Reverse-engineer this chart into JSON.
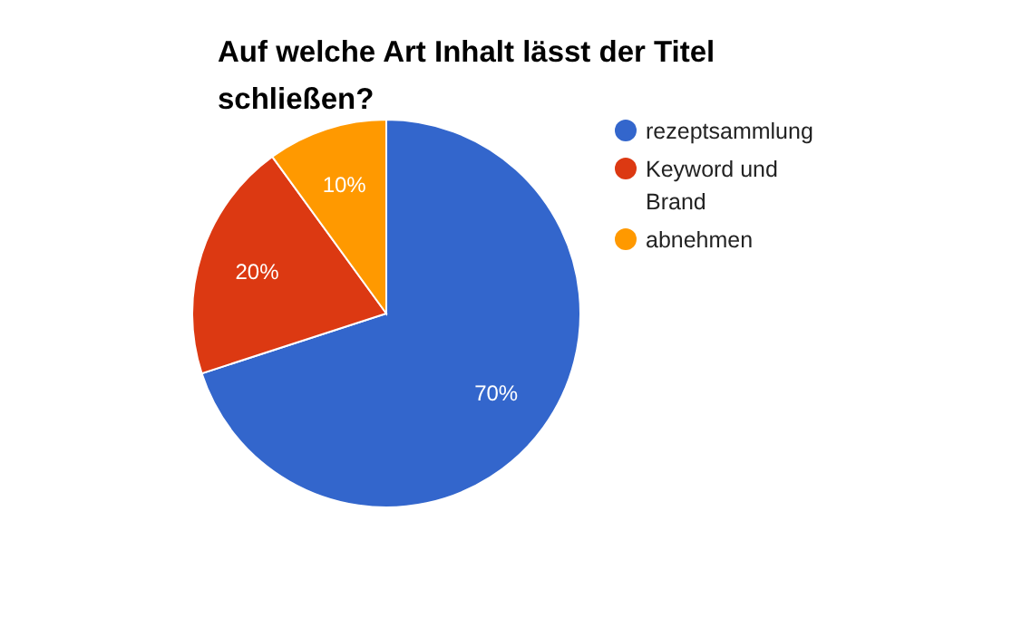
{
  "chart_data": {
    "type": "pie",
    "title": "Auf welche Art Inhalt lässt der Titel schließen?",
    "categories": [
      "rezeptsammlung",
      "Keyword und Brand",
      "abnehmen"
    ],
    "values": [
      70,
      20,
      10
    ],
    "value_labels": [
      "70%",
      "20%",
      "10%"
    ],
    "colors": [
      "#3366cc",
      "#dc3912",
      "#ff9900"
    ],
    "legend": "right"
  }
}
